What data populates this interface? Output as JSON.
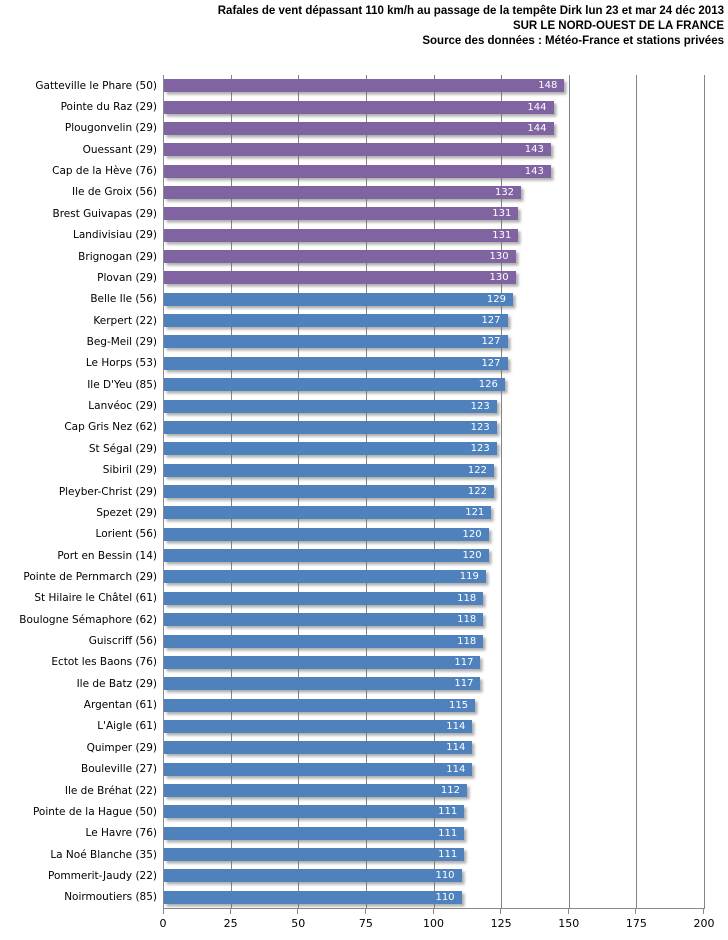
{
  "chart_data": {
    "type": "bar",
    "orientation": "horizontal",
    "title_lines": [
      "Rafales de vent dépassant 110 km/h au passage de la tempête Dirk lun 23 et mar 24 déc 2013",
      "SUR LE NORD-OUEST DE LA FRANCE",
      "Source des données : Météo-France et stations privées"
    ],
    "categories": [
      "Gatteville le Phare (50)",
      "Pointe du Raz (29)",
      "Plougonvelin (29)",
      "Ouessant (29)",
      "Cap de la Hève (76)",
      "Ile de Groix (56)",
      "Brest Guivapas (29)",
      "Landivisiau (29)",
      "Brignogan (29)",
      "Plovan (29)",
      "Belle Ile (56)",
      "Kerpert (22)",
      "Beg-Meil (29)",
      "Le Horps (53)",
      "Ile D'Yeu (85)",
      "Lanvéoc (29)",
      "Cap Gris Nez (62)",
      "St Ségal (29)",
      "Sibiril (29)",
      "Pleyber-Christ (29)",
      "Spezet (29)",
      "Lorient (56)",
      "Port en Bessin (14)",
      "Pointe de Pernmarch (29)",
      "St Hilaire le Châtel (61)",
      "Boulogne Sémaphore (62)",
      "Guiscriff (56)",
      "Ectot les Baons (76)",
      "Ile de Batz (29)",
      "Argentan (61)",
      "L'Aigle (61)",
      "Quimper (29)",
      "Bouleville (27)",
      "Ile de Bréhat (22)",
      "Pointe de la Hague (50)",
      "Le Havre (76)",
      "La Noé Blanche (35)",
      "Pommerit-Jaudy (22)",
      "Noirmoutiers (85)"
    ],
    "values": [
      148,
      144,
      144,
      143,
      143,
      132,
      131,
      131,
      130,
      130,
      129,
      127,
      127,
      127,
      126,
      123,
      123,
      123,
      122,
      122,
      121,
      120,
      120,
      119,
      118,
      118,
      118,
      117,
      117,
      115,
      114,
      114,
      114,
      112,
      111,
      111,
      111,
      110,
      110
    ],
    "purple_count": 10,
    "colors": {
      "top_10_bars": "#8064A2",
      "other_bars": "#4F81BD",
      "gridline": "#848484",
      "value_label": "#ffffff"
    },
    "x_axis": {
      "min": 0,
      "max": 200,
      "ticks": [
        0,
        25,
        50,
        75,
        100,
        125,
        150,
        175,
        200
      ]
    },
    "grid": "vertical-on",
    "legend": "none"
  }
}
